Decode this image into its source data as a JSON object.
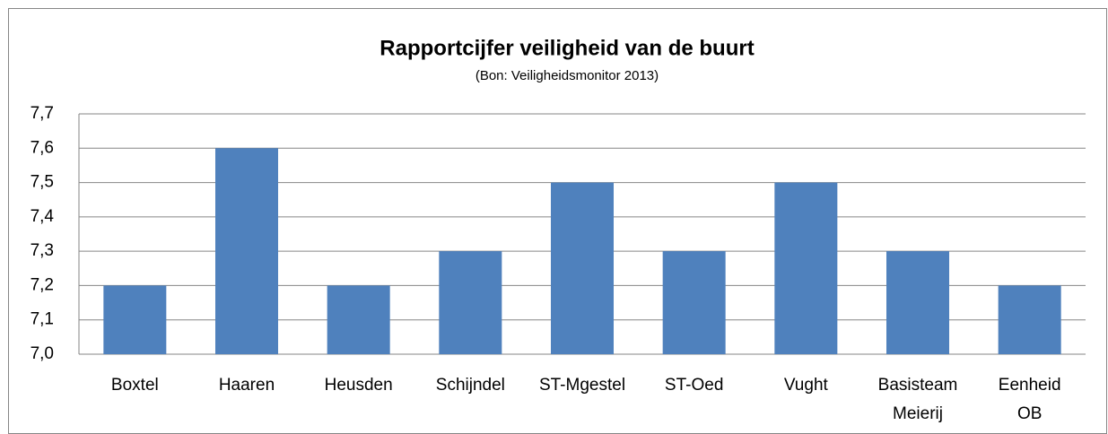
{
  "chart_data": {
    "type": "bar",
    "title": "Rapportcijfer veiligheid van de buurt",
    "subtitle": "(Bon: Veiligheidsmonitor 2013)",
    "categories": [
      "Boxtel",
      "Haaren",
      "Heusden",
      "Schijndel",
      "ST-Mgestel",
      "ST-Oed",
      "Vught",
      "Basisteam Meierij",
      "Eenheid OB"
    ],
    "values": [
      7.2,
      7.6,
      7.2,
      7.3,
      7.5,
      7.3,
      7.5,
      7.3,
      7.2
    ],
    "color": "#4f81bd",
    "ylim": [
      7.0,
      7.7
    ],
    "yticks": [
      {
        "value": 7.0,
        "label": "7,0"
      },
      {
        "value": 7.1,
        "label": "7,1"
      },
      {
        "value": 7.2,
        "label": "7,2"
      },
      {
        "value": 7.3,
        "label": "7,3"
      },
      {
        "value": 7.4,
        "label": "7,4"
      },
      {
        "value": 7.5,
        "label": "7,5"
      },
      {
        "value": 7.6,
        "label": "7,6"
      },
      {
        "value": 7.7,
        "label": "7,7"
      }
    ],
    "grid": true
  }
}
